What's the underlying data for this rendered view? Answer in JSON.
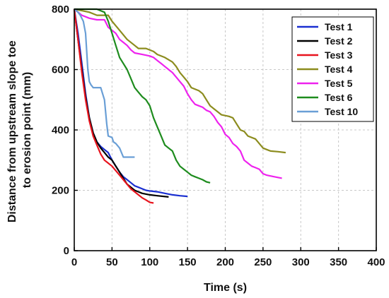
{
  "chart_data": {
    "type": "line",
    "title": "",
    "xlabel": "Time (s)",
    "ylabel_lines": [
      "Distance from upstream slope toe",
      "to erosion point (mm)"
    ],
    "xlim": [
      0,
      400
    ],
    "ylim": [
      0,
      800
    ],
    "xticks": [
      0,
      50,
      100,
      150,
      200,
      250,
      300,
      350,
      400
    ],
    "yticks": [
      0,
      200,
      400,
      600,
      800
    ],
    "grid": true,
    "legend_position": "top-right",
    "series": [
      {
        "name": "Test 1",
        "color": "#1a2fd1",
        "points": [
          [
            0,
            800
          ],
          [
            5,
            720
          ],
          [
            10,
            620
          ],
          [
            15,
            520
          ],
          [
            20,
            440
          ],
          [
            25,
            390
          ],
          [
            30,
            360
          ],
          [
            35,
            345
          ],
          [
            40,
            335
          ],
          [
            45,
            325
          ],
          [
            50,
            300
          ],
          [
            55,
            280
          ],
          [
            60,
            260
          ],
          [
            65,
            245
          ],
          [
            70,
            235
          ],
          [
            75,
            225
          ],
          [
            80,
            215
          ],
          [
            85,
            210
          ],
          [
            90,
            205
          ],
          [
            95,
            200
          ],
          [
            100,
            198
          ],
          [
            110,
            195
          ],
          [
            120,
            190
          ],
          [
            130,
            185
          ],
          [
            140,
            182
          ],
          [
            150,
            180
          ]
        ]
      },
      {
        "name": "Test 2",
        "color": "#000000",
        "points": [
          [
            0,
            800
          ],
          [
            5,
            700
          ],
          [
            10,
            600
          ],
          [
            15,
            510
          ],
          [
            20,
            440
          ],
          [
            25,
            390
          ],
          [
            30,
            360
          ],
          [
            35,
            340
          ],
          [
            40,
            325
          ],
          [
            45,
            310
          ],
          [
            50,
            300
          ],
          [
            55,
            280
          ],
          [
            60,
            260
          ],
          [
            65,
            240
          ],
          [
            70,
            220
          ],
          [
            75,
            210
          ],
          [
            80,
            200
          ],
          [
            85,
            195
          ],
          [
            90,
            190
          ],
          [
            100,
            185
          ],
          [
            110,
            182
          ],
          [
            125,
            178
          ]
        ]
      },
      {
        "name": "Test 3",
        "color": "#e8141e",
        "points": [
          [
            0,
            800
          ],
          [
            5,
            700
          ],
          [
            10,
            590
          ],
          [
            15,
            500
          ],
          [
            20,
            430
          ],
          [
            25,
            380
          ],
          [
            30,
            350
          ],
          [
            35,
            320
          ],
          [
            40,
            300
          ],
          [
            45,
            290
          ],
          [
            50,
            280
          ],
          [
            55,
            265
          ],
          [
            60,
            250
          ],
          [
            65,
            235
          ],
          [
            70,
            220
          ],
          [
            75,
            205
          ],
          [
            80,
            195
          ],
          [
            85,
            185
          ],
          [
            90,
            175
          ],
          [
            95,
            168
          ],
          [
            100,
            160
          ],
          [
            105,
            158
          ]
        ]
      },
      {
        "name": "Test 4",
        "color": "#8c8c1e",
        "points": [
          [
            0,
            800
          ],
          [
            10,
            795
          ],
          [
            20,
            790
          ],
          [
            30,
            780
          ],
          [
            45,
            780
          ],
          [
            50,
            760
          ],
          [
            60,
            730
          ],
          [
            70,
            700
          ],
          [
            80,
            680
          ],
          [
            85,
            670
          ],
          [
            95,
            670
          ],
          [
            105,
            660
          ],
          [
            110,
            650
          ],
          [
            120,
            640
          ],
          [
            130,
            625
          ],
          [
            135,
            610
          ],
          [
            140,
            590
          ],
          [
            145,
            575
          ],
          [
            150,
            560
          ],
          [
            155,
            540
          ],
          [
            165,
            530
          ],
          [
            170,
            520
          ],
          [
            175,
            500
          ],
          [
            180,
            480
          ],
          [
            185,
            470
          ],
          [
            195,
            450
          ],
          [
            205,
            445
          ],
          [
            210,
            440
          ],
          [
            215,
            420
          ],
          [
            220,
            400
          ],
          [
            225,
            395
          ],
          [
            230,
            380
          ],
          [
            240,
            370
          ],
          [
            245,
            355
          ],
          [
            250,
            340
          ],
          [
            255,
            335
          ],
          [
            260,
            330
          ],
          [
            270,
            328
          ],
          [
            280,
            325
          ]
        ]
      },
      {
        "name": "Test 5",
        "color": "#ee22ee",
        "points": [
          [
            0,
            800
          ],
          [
            10,
            780
          ],
          [
            20,
            770
          ],
          [
            30,
            765
          ],
          [
            40,
            765
          ],
          [
            45,
            740
          ],
          [
            50,
            730
          ],
          [
            55,
            720
          ],
          [
            60,
            700
          ],
          [
            65,
            690
          ],
          [
            70,
            680
          ],
          [
            75,
            665
          ],
          [
            80,
            655
          ],
          [
            90,
            650
          ],
          [
            100,
            645
          ],
          [
            105,
            640
          ],
          [
            110,
            630
          ],
          [
            115,
            620
          ],
          [
            120,
            610
          ],
          [
            125,
            600
          ],
          [
            130,
            590
          ],
          [
            135,
            575
          ],
          [
            140,
            560
          ],
          [
            145,
            545
          ],
          [
            150,
            520
          ],
          [
            155,
            500
          ],
          [
            160,
            485
          ],
          [
            165,
            480
          ],
          [
            170,
            475
          ],
          [
            175,
            465
          ],
          [
            180,
            460
          ],
          [
            185,
            445
          ],
          [
            190,
            425
          ],
          [
            195,
            410
          ],
          [
            200,
            385
          ],
          [
            205,
            375
          ],
          [
            210,
            355
          ],
          [
            215,
            345
          ],
          [
            220,
            330
          ],
          [
            225,
            300
          ],
          [
            230,
            290
          ],
          [
            235,
            280
          ],
          [
            240,
            275
          ],
          [
            245,
            270
          ],
          [
            250,
            255
          ],
          [
            255,
            250
          ],
          [
            265,
            245
          ],
          [
            275,
            240
          ]
        ]
      },
      {
        "name": "Test 6",
        "color": "#1e8c1e",
        "points": [
          [
            0,
            800
          ],
          [
            10,
            800
          ],
          [
            20,
            800
          ],
          [
            30,
            800
          ],
          [
            40,
            790
          ],
          [
            45,
            760
          ],
          [
            50,
            720
          ],
          [
            55,
            680
          ],
          [
            60,
            640
          ],
          [
            65,
            620
          ],
          [
            70,
            600
          ],
          [
            75,
            570
          ],
          [
            80,
            540
          ],
          [
            85,
            525
          ],
          [
            90,
            510
          ],
          [
            95,
            500
          ],
          [
            100,
            480
          ],
          [
            105,
            440
          ],
          [
            110,
            410
          ],
          [
            115,
            380
          ],
          [
            120,
            350
          ],
          [
            125,
            340
          ],
          [
            130,
            330
          ],
          [
            135,
            300
          ],
          [
            140,
            280
          ],
          [
            145,
            270
          ],
          [
            150,
            260
          ],
          [
            155,
            250
          ],
          [
            160,
            245
          ],
          [
            165,
            240
          ],
          [
            170,
            235
          ],
          [
            175,
            228
          ],
          [
            180,
            225
          ]
        ]
      },
      {
        "name": "Test 10",
        "color": "#6a9fd6",
        "points": [
          [
            0,
            800
          ],
          [
            5,
            790
          ],
          [
            8,
            780
          ],
          [
            12,
            760
          ],
          [
            15,
            720
          ],
          [
            18,
            600
          ],
          [
            20,
            560
          ],
          [
            22,
            550
          ],
          [
            25,
            540
          ],
          [
            35,
            540
          ],
          [
            40,
            500
          ],
          [
            43,
            420
          ],
          [
            45,
            380
          ],
          [
            50,
            375
          ],
          [
            52,
            360
          ],
          [
            55,
            355
          ],
          [
            60,
            340
          ],
          [
            65,
            310
          ],
          [
            75,
            310
          ],
          [
            80,
            310
          ]
        ]
      }
    ]
  }
}
